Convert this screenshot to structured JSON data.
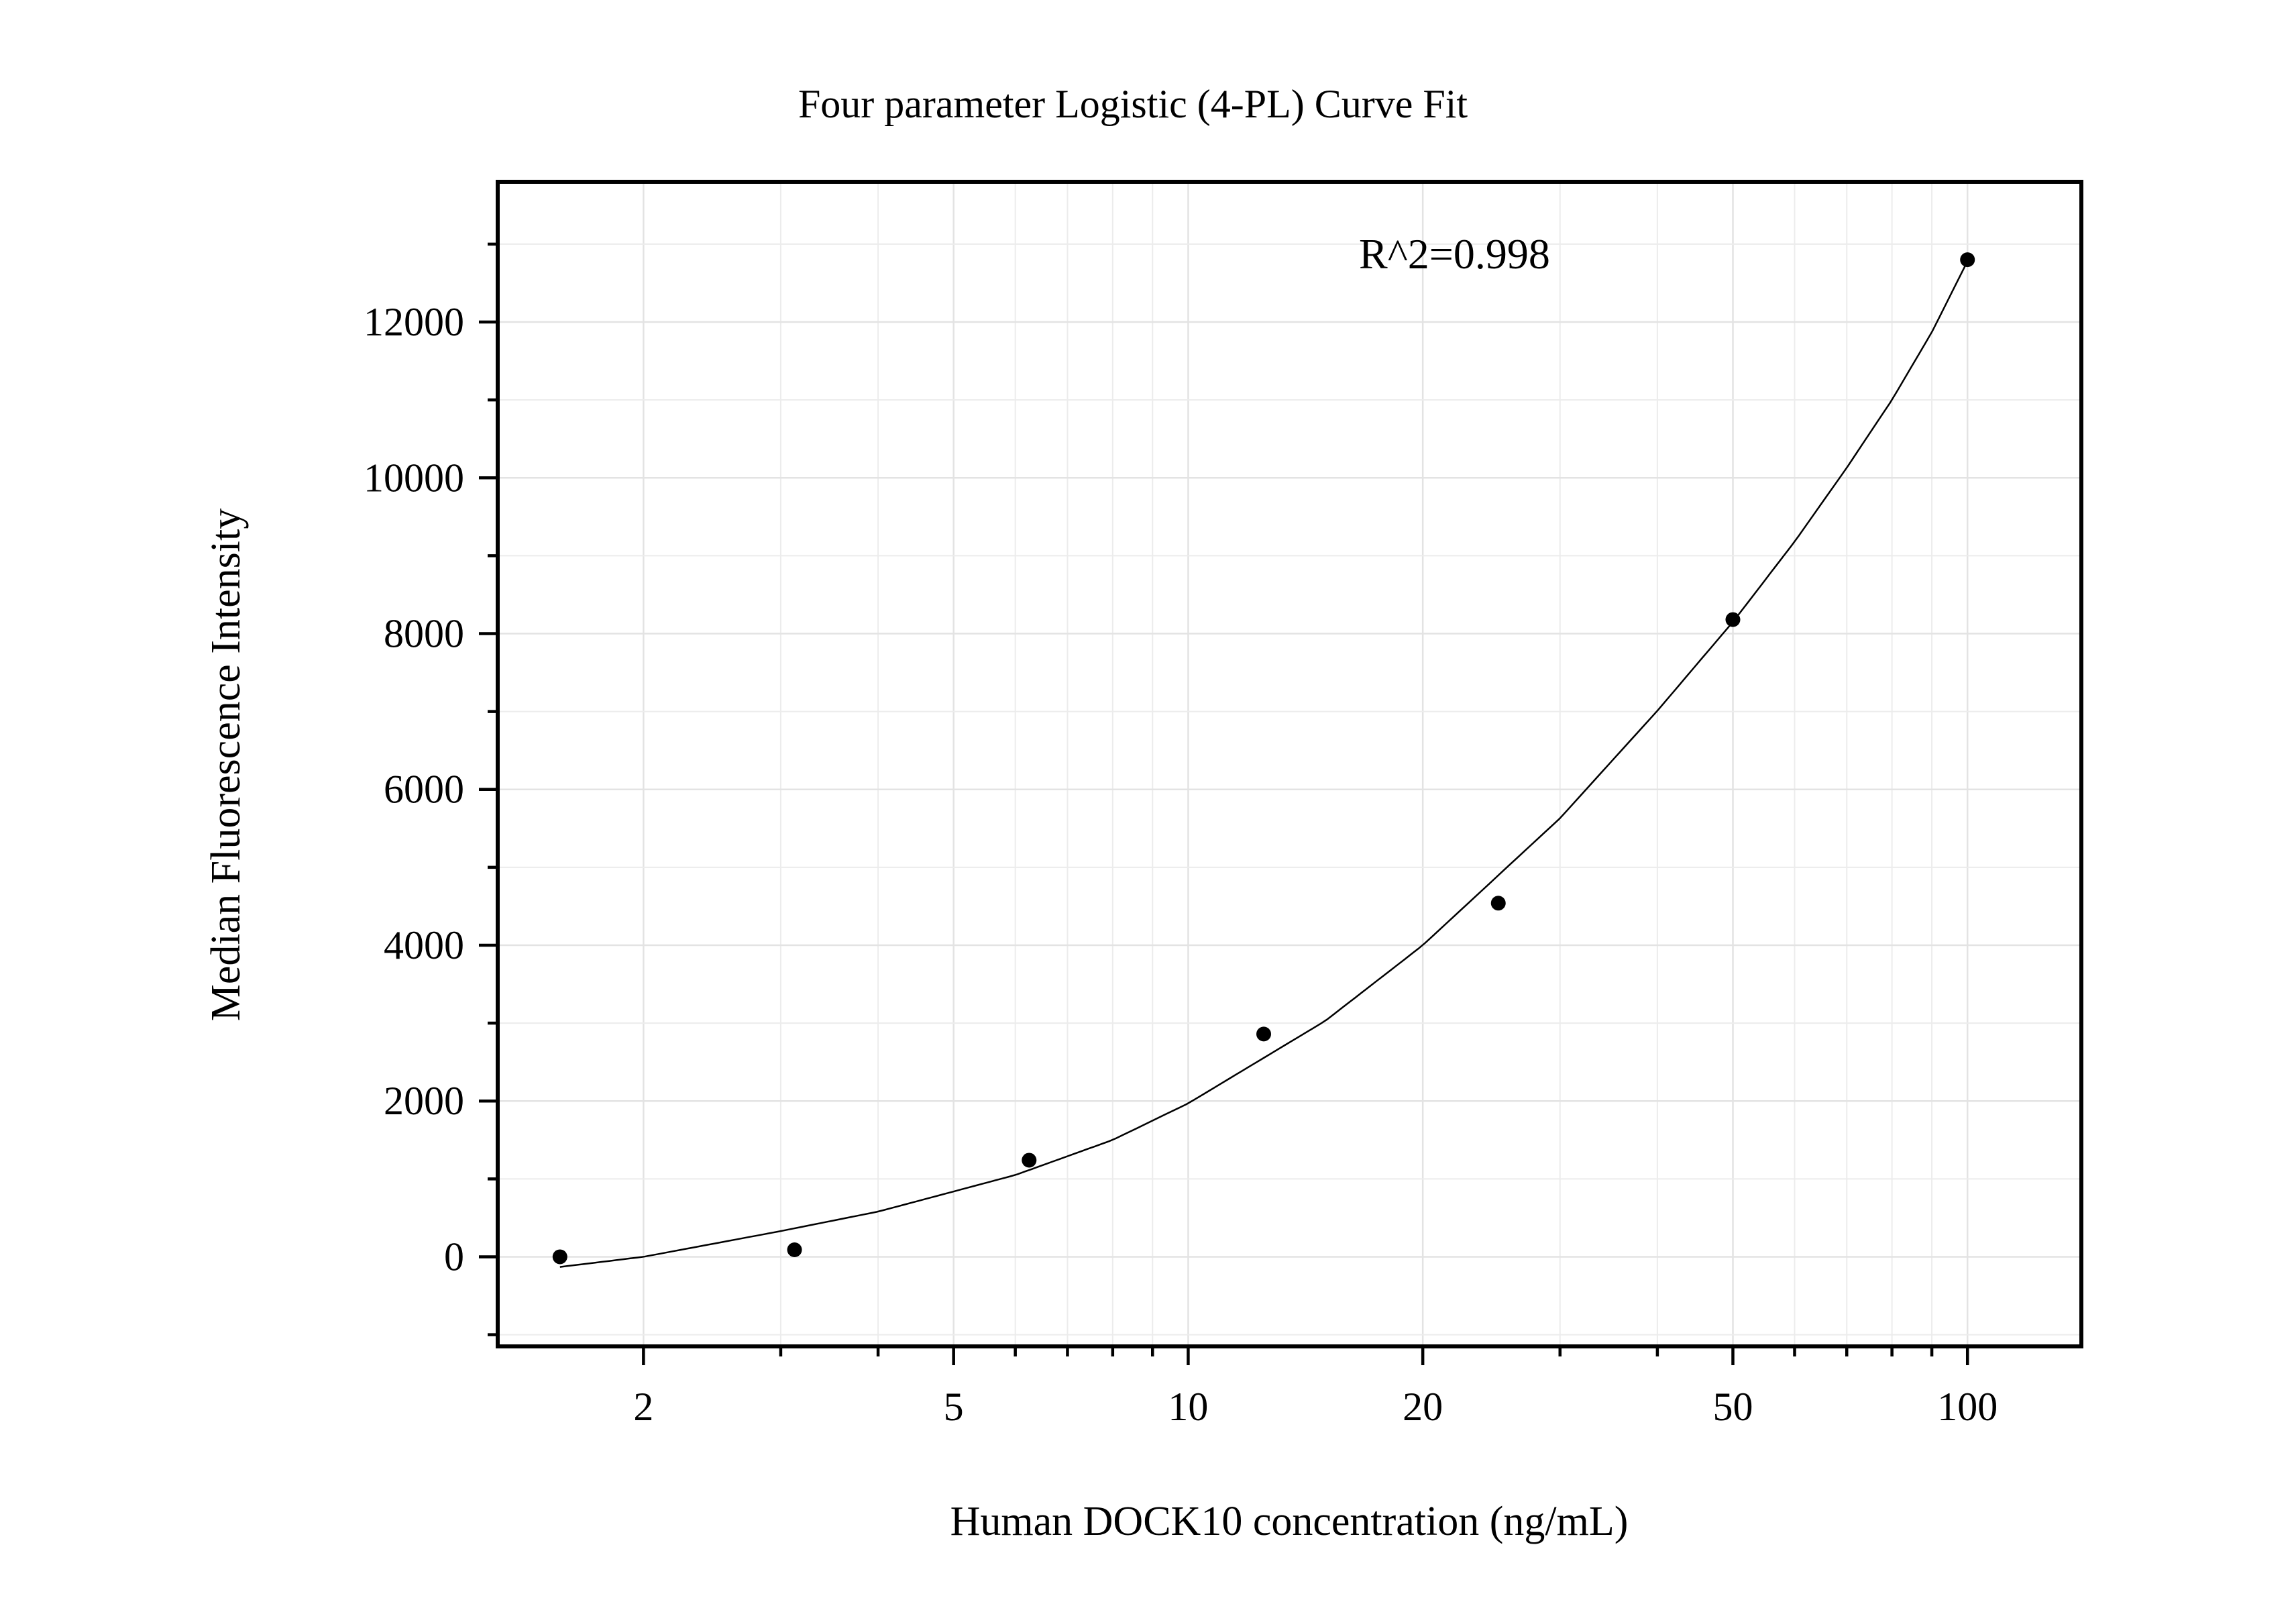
{
  "chart_data": {
    "type": "scatter",
    "title": "Four parameter Logistic (4-PL) Curve Fit",
    "xlabel": "Human DOCK10 concentration (ng/mL)",
    "ylabel": "Median Fluorescence Intensity",
    "x_scale": "log",
    "xlim": [
      1.3,
      140
    ],
    "ylim": [
      -1150,
      13800
    ],
    "x_ticks": [
      2,
      5,
      10,
      20,
      50,
      100
    ],
    "x_tick_labels": [
      "2",
      "5",
      "10",
      "20",
      "50",
      "100"
    ],
    "y_ticks": [
      0,
      2000,
      4000,
      6000,
      8000,
      10000,
      12000
    ],
    "y_tick_labels": [
      "0",
      "2000",
      "4000",
      "6000",
      "8000",
      "10000",
      "12000"
    ],
    "grid": true,
    "annotation": "R^2=0.998",
    "points": {
      "x": [
        1.5625,
        3.125,
        6.25,
        12.5,
        25,
        50,
        100
      ],
      "y": [
        0,
        90,
        1240,
        2860,
        4540,
        8180,
        12800
      ]
    },
    "fit_curve": {
      "x": [
        1.5625,
        2,
        3,
        4,
        6,
        8,
        10,
        15,
        20,
        30,
        40,
        50,
        60,
        70,
        80,
        90,
        100
      ],
      "y": [
        -130,
        0,
        330,
        580,
        1050,
        1500,
        1970,
        3030,
        4000,
        5630,
        7010,
        8150,
        9180,
        10130,
        11000,
        11870,
        12780
      ]
    }
  }
}
